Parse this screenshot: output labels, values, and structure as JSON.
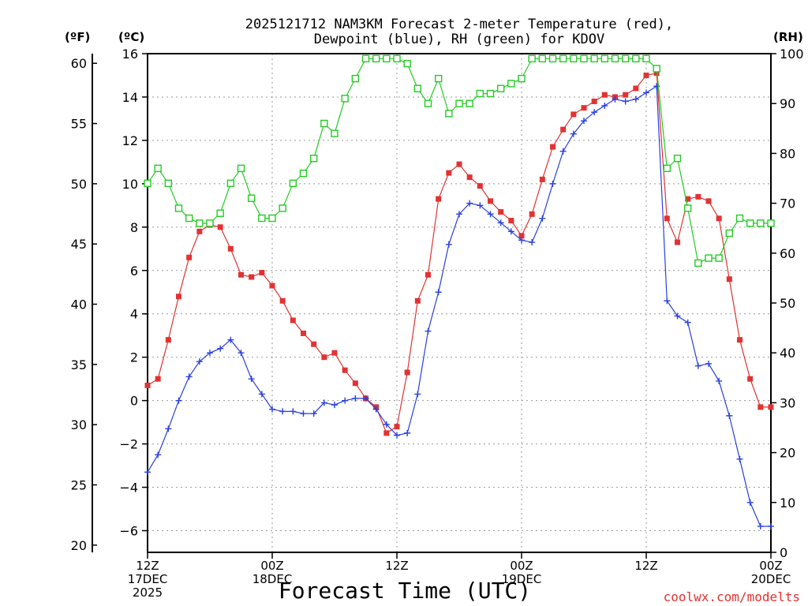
{
  "chart_data": {
    "type": "line",
    "title_lines": [
      "2025121712 NAM3KM Forecast 2-meter Temperature (red),",
      "Dewpoint (blue), RH (green) for KDOV"
    ],
    "xlabel": "Forecast Time (UTC)",
    "credit": "coolwx.com/modelts",
    "units": {
      "fahrenheit": "(ºF)",
      "celsius": "(ºC)",
      "rh": "(RH)"
    },
    "x_range": [
      0,
      60
    ],
    "x_ticks": [
      {
        "x": 0,
        "lines": [
          "12Z",
          "17DEC",
          "2025"
        ]
      },
      {
        "x": 12,
        "lines": [
          "00Z",
          "18DEC"
        ]
      },
      {
        "x": 24,
        "lines": [
          "12Z"
        ]
      },
      {
        "x": 36,
        "lines": [
          "00Z",
          "19DEC"
        ]
      },
      {
        "x": 48,
        "lines": [
          "12Z"
        ]
      },
      {
        "x": 60,
        "lines": [
          "00Z",
          "20DEC"
        ]
      }
    ],
    "celsius_axis": {
      "range": [
        -7,
        16
      ],
      "ticks": [
        "16",
        "14",
        "12",
        "10",
        "8",
        "6",
        "4",
        "2",
        "0",
        "−2",
        "−4",
        "−6"
      ],
      "tick_values": [
        16,
        14,
        12,
        10,
        8,
        6,
        4,
        2,
        0,
        -2,
        -4,
        -6
      ]
    },
    "fahrenheit_axis": {
      "range": [
        19.4,
        60.8
      ],
      "ticks": [
        "60",
        "55",
        "50",
        "45",
        "40",
        "35",
        "30",
        "25",
        "20"
      ],
      "tick_values": [
        60,
        55,
        50,
        45,
        40,
        35,
        30,
        25,
        20
      ]
    },
    "rh_axis": {
      "range": [
        0,
        100
      ],
      "ticks": [
        "100",
        "90",
        "80",
        "70",
        "60",
        "50",
        "40",
        "30",
        "20",
        "10",
        "0"
      ],
      "tick_values": [
        100,
        90,
        80,
        70,
        60,
        50,
        40,
        30,
        20,
        10,
        0
      ]
    },
    "series": [
      {
        "name": "Temperature",
        "color": "#e23232",
        "marker": "filled-square",
        "axis": "celsius",
        "x": [
          0,
          1,
          2,
          3,
          4,
          5,
          6,
          7,
          8,
          9,
          10,
          11,
          12,
          13,
          14,
          15,
          16,
          17,
          18,
          19,
          20,
          21,
          22,
          23,
          24,
          25,
          26,
          27,
          28,
          29,
          30,
          31,
          32,
          33,
          34,
          35,
          36,
          37,
          38,
          39,
          40,
          41,
          42,
          43,
          44,
          45,
          46,
          47,
          48,
          49,
          50,
          51,
          52,
          53,
          54,
          55,
          56,
          57,
          58,
          59,
          60
        ],
        "values": [
          0.7,
          1.0,
          2.8,
          4.8,
          6.6,
          7.8,
          8.1,
          8.0,
          7.0,
          5.8,
          5.7,
          5.9,
          5.3,
          4.6,
          3.7,
          3.1,
          2.6,
          2.0,
          2.2,
          1.4,
          0.8,
          0.1,
          -0.3,
          -1.5,
          -1.2,
          1.3,
          4.6,
          5.8,
          9.3,
          10.5,
          10.9,
          10.3,
          9.9,
          9.2,
          8.7,
          8.3,
          7.6,
          8.6,
          10.2,
          11.7,
          12.5,
          13.2,
          13.5,
          13.8,
          14.1,
          14.0,
          14.1,
          14.4,
          15.0,
          15.1,
          8.4,
          7.3,
          9.3,
          9.4,
          9.2,
          8.4,
          5.6,
          2.8,
          1.0,
          -0.3,
          -0.3
        ]
      },
      {
        "name": "Dewpoint",
        "color": "#2a40e0",
        "marker": "plus",
        "axis": "celsius",
        "x": [
          0,
          1,
          2,
          3,
          4,
          5,
          6,
          7,
          8,
          9,
          10,
          11,
          12,
          13,
          14,
          15,
          16,
          17,
          18,
          19,
          20,
          21,
          22,
          23,
          24,
          25,
          26,
          27,
          28,
          29,
          30,
          31,
          32,
          33,
          34,
          35,
          36,
          37,
          38,
          39,
          40,
          41,
          42,
          43,
          44,
          45,
          46,
          47,
          48,
          49,
          50,
          51,
          52,
          53,
          54,
          55,
          56,
          57,
          58,
          59,
          60
        ],
        "values": [
          -3.3,
          -2.5,
          -1.3,
          0.0,
          1.1,
          1.8,
          2.2,
          2.4,
          2.8,
          2.2,
          1.0,
          0.3,
          -0.4,
          -0.5,
          -0.5,
          -0.6,
          -0.6,
          -0.1,
          -0.2,
          0.0,
          0.1,
          0.1,
          -0.4,
          -1.1,
          -1.6,
          -1.5,
          0.3,
          3.2,
          5.0,
          7.2,
          8.6,
          9.1,
          9.0,
          8.6,
          8.2,
          7.8,
          7.4,
          7.3,
          8.4,
          10.0,
          11.5,
          12.3,
          12.9,
          13.3,
          13.6,
          13.9,
          13.8,
          13.9,
          14.2,
          14.5,
          4.6,
          3.9,
          3.6,
          1.6,
          1.7,
          0.9,
          -0.7,
          -2.7,
          -4.7,
          -5.8,
          -5.8
        ]
      },
      {
        "name": "RH",
        "color": "#22cc22",
        "marker": "open-square",
        "axis": "rh",
        "x": [
          0,
          1,
          2,
          3,
          4,
          5,
          6,
          7,
          8,
          9,
          10,
          11,
          12,
          13,
          14,
          15,
          16,
          17,
          18,
          19,
          20,
          21,
          22,
          23,
          24,
          25,
          26,
          27,
          28,
          29,
          30,
          31,
          32,
          33,
          34,
          35,
          36,
          37,
          38,
          39,
          40,
          41,
          42,
          43,
          44,
          45,
          46,
          47,
          48,
          49,
          50,
          51,
          52,
          53,
          54,
          55,
          56,
          57,
          58,
          59,
          60
        ],
        "values": [
          74,
          77,
          74,
          69,
          67,
          66,
          66,
          68,
          74,
          77,
          71,
          67,
          67,
          69,
          74,
          76,
          79,
          86,
          84,
          91,
          95,
          99,
          99,
          99,
          99,
          98,
          93,
          90,
          95,
          88,
          90,
          90,
          92,
          92,
          93,
          94,
          95,
          99,
          99,
          99,
          99,
          99,
          99,
          99,
          99,
          99,
          99,
          99,
          99,
          97,
          77,
          79,
          69,
          58,
          59,
          59,
          64,
          67,
          66,
          66,
          66
        ]
      }
    ]
  }
}
